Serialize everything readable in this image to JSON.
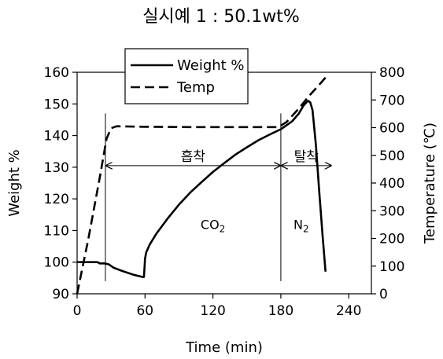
{
  "chart_data": {
    "type": "line",
    "title": "실시예 1 : 50.1wt%",
    "xlabel": "Time (min)",
    "ylabel": "Weight %",
    "y2label": "Temperature (℃)",
    "xlim": [
      0,
      260
    ],
    "ylim": [
      90,
      160
    ],
    "y2lim": [
      0,
      800
    ],
    "xticks": [
      0,
      60,
      120,
      180,
      240
    ],
    "yticks": [
      90,
      100,
      110,
      120,
      130,
      140,
      150,
      160
    ],
    "y2ticks": [
      0,
      100,
      200,
      300,
      400,
      500,
      600,
      700,
      800
    ],
    "grid": false,
    "legend_position": "top-center",
    "series": [
      {
        "name": "Weight %",
        "axis": "left",
        "style": "solid",
        "points": [
          [
            0,
            100
          ],
          [
            5,
            100
          ],
          [
            10,
            100
          ],
          [
            18,
            100
          ],
          [
            20,
            99.6
          ],
          [
            24,
            99.6
          ],
          [
            28,
            99.3
          ],
          [
            32,
            98.3
          ],
          [
            40,
            97.2
          ],
          [
            50,
            96
          ],
          [
            58,
            95.3
          ],
          [
            59,
            95.3
          ],
          [
            59.5,
            98
          ],
          [
            60,
            101
          ],
          [
            61,
            103
          ],
          [
            64,
            105.5
          ],
          [
            70,
            109
          ],
          [
            80,
            113.8
          ],
          [
            90,
            118.2
          ],
          [
            100,
            122
          ],
          [
            110,
            125.3
          ],
          [
            120,
            128.5
          ],
          [
            130,
            131.3
          ],
          [
            140,
            134
          ],
          [
            150,
            136.3
          ],
          [
            160,
            138.5
          ],
          [
            170,
            140.3
          ],
          [
            180,
            142
          ],
          [
            190,
            144.5
          ],
          [
            196,
            147
          ],
          [
            200,
            149.5
          ],
          [
            204,
            151
          ],
          [
            206,
            150.5
          ],
          [
            208,
            148
          ],
          [
            211,
            137
          ],
          [
            214,
            122
          ],
          [
            217,
            108
          ],
          [
            219.5,
            97
          ]
        ]
      },
      {
        "name": "Temp",
        "axis": "right",
        "style": "dashed",
        "points": [
          [
            0,
            0
          ],
          [
            10,
            200
          ],
          [
            20,
            420
          ],
          [
            26,
            560
          ],
          [
            30,
            598
          ],
          [
            35,
            605
          ],
          [
            60,
            603
          ],
          [
            100,
            602
          ],
          [
            150,
            602
          ],
          [
            178,
            602
          ],
          [
            185,
            620
          ],
          [
            195,
            665
          ],
          [
            205,
            715
          ],
          [
            215,
            760
          ],
          [
            222,
            793
          ]
        ]
      }
    ],
    "regions": [
      {
        "label": "흡착",
        "x_start": 25,
        "x_end": 180,
        "gas_base": "CO",
        "gas_sub": "2",
        "gas_x": 120,
        "gas_y": 112
      },
      {
        "label": "탈착",
        "x_start": 180,
        "x_end": 225,
        "gas_base": "N",
        "gas_sub": "2",
        "gas_x": 198,
        "gas_y": 112
      }
    ],
    "vlines": [
      25,
      180
    ]
  }
}
